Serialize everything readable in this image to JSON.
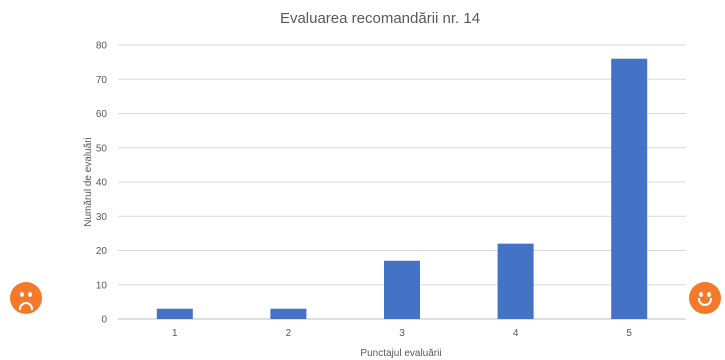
{
  "chart_data": {
    "type": "bar",
    "title": "Evaluarea recomandării nr. 14",
    "xlabel": "Punctajul evaluării",
    "ylabel": "Numărul de evaluări",
    "categories": [
      "1",
      "2",
      "3",
      "4",
      "5"
    ],
    "values": [
      3,
      3,
      17,
      22,
      76
    ],
    "ylim": [
      0,
      80
    ],
    "yticks": [
      0,
      10,
      20,
      30,
      40,
      50,
      60,
      70,
      80
    ],
    "grid": true,
    "bar_color": "#4472c4"
  },
  "decorations": {
    "left_icon": "sad-face-icon",
    "right_icon": "happy-face-icon",
    "icon_color": "#f47a2b"
  }
}
